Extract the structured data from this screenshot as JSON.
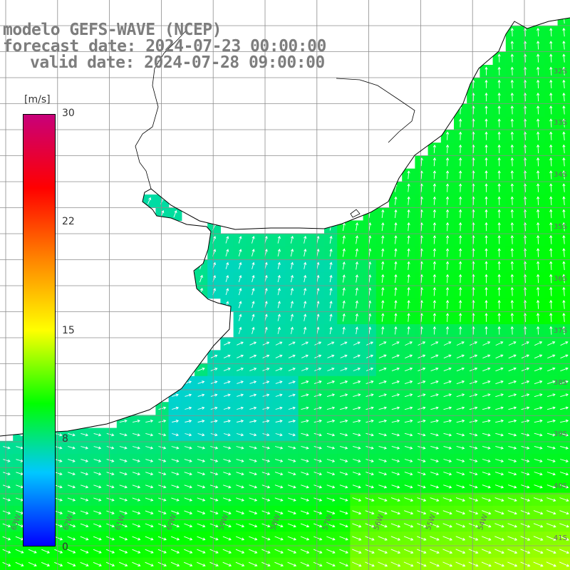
{
  "title": {
    "model": "modelo GEFS-WAVE (NCEP)",
    "forecast": "forecast date: 2024-07-23 00:00:00",
    "valid": "valid date: 2024-07-28 09:00:00"
  },
  "colorbar": {
    "unit": "[m/s]",
    "min": 0,
    "max": 30,
    "ticks": [
      "30",
      "22",
      "15",
      "8",
      "0"
    ],
    "tick_values": [
      30,
      22,
      15,
      8,
      0
    ],
    "colors": [
      "#0000ff",
      "#00c8ff",
      "#00ff00",
      "#ffff00",
      "#ff8000",
      "#ff0000",
      "#c8007a"
    ]
  },
  "map": {
    "variable": "wind speed and direction",
    "lon_range_deg": [
      -64,
      -53.5
    ],
    "lat_range_deg": [
      -42,
      -31
    ],
    "lat_labels": [
      "32S",
      "33S",
      "34S",
      "35S",
      "36S",
      "37S",
      "38S",
      "39S",
      "40S",
      "41S"
    ],
    "lon_labels": [
      "63W",
      "62W",
      "61W",
      "60W",
      "59W",
      "58W",
      "57W",
      "56W",
      "55W",
      "54W"
    ],
    "land_color": "#ffffff",
    "grid_color": "#8c8c8c",
    "coast_color": "#000000",
    "arrow_color": "#ffffff"
  }
}
